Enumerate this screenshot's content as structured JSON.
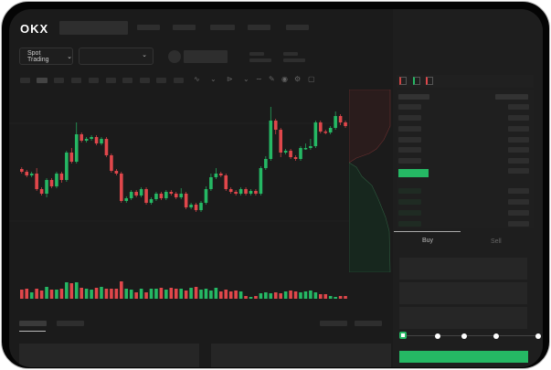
{
  "header": {
    "logo": "OKX"
  },
  "toolbar": {
    "market_type": "Spot Trading",
    "pair_selector": ""
  },
  "trade": {
    "tabs": [
      "Buy",
      "Sell"
    ],
    "active_tab": "Buy",
    "slider_percent": 0
  },
  "colors": {
    "up": "#25b864",
    "down": "#e0474b",
    "background": "#1b1b1b"
  },
  "chart_data": {
    "type": "candlestick",
    "candles_ohlc_order": "open,close,high,low",
    "candles": [
      [
        117,
        114,
        119,
        112
      ],
      [
        114,
        110,
        116,
        108
      ],
      [
        110,
        112,
        114,
        108
      ],
      [
        112,
        95,
        118,
        93
      ],
      [
        95,
        90,
        97,
        88
      ],
      [
        90,
        105,
        107,
        86
      ],
      [
        105,
        98,
        107,
        96
      ],
      [
        98,
        112,
        114,
        96
      ],
      [
        112,
        105,
        114,
        102
      ],
      [
        105,
        135,
        137,
        103
      ],
      [
        135,
        125,
        140,
        123
      ],
      [
        125,
        155,
        168,
        123
      ],
      [
        155,
        148,
        157,
        146
      ],
      [
        148,
        150,
        152,
        146
      ],
      [
        150,
        152,
        154,
        148
      ],
      [
        152,
        145,
        154,
        143
      ],
      [
        145,
        150,
        152,
        143
      ],
      [
        150,
        132,
        152,
        130
      ],
      [
        132,
        115,
        134,
        113
      ],
      [
        115,
        112,
        117,
        110
      ],
      [
        112,
        82,
        114,
        80
      ],
      [
        82,
        85,
        87,
        80
      ],
      [
        85,
        92,
        94,
        83
      ],
      [
        92,
        88,
        94,
        86
      ],
      [
        88,
        95,
        97,
        86
      ],
      [
        95,
        80,
        97,
        78
      ],
      [
        80,
        84,
        86,
        78
      ],
      [
        84,
        90,
        92,
        82
      ],
      [
        90,
        85,
        92,
        83
      ],
      [
        85,
        92,
        94,
        83
      ],
      [
        92,
        90,
        94,
        88
      ],
      [
        90,
        86,
        92,
        84
      ],
      [
        86,
        90,
        96,
        84
      ],
      [
        90,
        75,
        92,
        73
      ],
      [
        75,
        78,
        80,
        73
      ],
      [
        78,
        72,
        80,
        70
      ],
      [
        72,
        80,
        82,
        70
      ],
      [
        80,
        95,
        98,
        78
      ],
      [
        95,
        108,
        112,
        93
      ],
      [
        108,
        112,
        118,
        106
      ],
      [
        112,
        110,
        114,
        108
      ],
      [
        110,
        95,
        112,
        93
      ],
      [
        95,
        92,
        97,
        90
      ],
      [
        92,
        90,
        94,
        88
      ],
      [
        90,
        95,
        97,
        88
      ],
      [
        95,
        90,
        97,
        88
      ],
      [
        90,
        93,
        95,
        88
      ],
      [
        93,
        90,
        95,
        88
      ],
      [
        90,
        118,
        120,
        88
      ],
      [
        118,
        128,
        131,
        116
      ],
      [
        128,
        170,
        185,
        126
      ],
      [
        170,
        160,
        172,
        155
      ],
      [
        160,
        135,
        162,
        130
      ],
      [
        135,
        137,
        139,
        133
      ],
      [
        137,
        130,
        139,
        128
      ],
      [
        130,
        128,
        132,
        126
      ],
      [
        128,
        140,
        142,
        126
      ],
      [
        140,
        140,
        145,
        138
      ],
      [
        140,
        142,
        150,
        138
      ],
      [
        142,
        168,
        170,
        140
      ],
      [
        168,
        158,
        170,
        156
      ],
      [
        158,
        157,
        160,
        155
      ],
      [
        157,
        162,
        164,
        155
      ],
      [
        162,
        175,
        180,
        160
      ],
      [
        175,
        168,
        177,
        165
      ],
      [
        168,
        164,
        170,
        162
      ]
    ],
    "volumes": [
      10,
      11,
      7,
      11,
      9,
      13,
      10,
      10,
      11,
      18,
      17,
      18,
      12,
      11,
      10,
      12,
      13,
      11,
      11,
      11,
      19,
      11,
      10,
      7,
      11,
      7,
      11,
      11,
      12,
      10,
      12,
      11,
      11,
      9,
      12,
      13,
      10,
      11,
      9,
      12,
      8,
      10,
      8,
      9,
      8,
      3,
      2,
      3,
      6,
      7,
      6,
      7,
      6,
      8,
      9,
      8,
      7,
      8,
      9,
      7,
      5,
      5,
      3,
      2,
      3,
      3
    ],
    "grid": true
  }
}
